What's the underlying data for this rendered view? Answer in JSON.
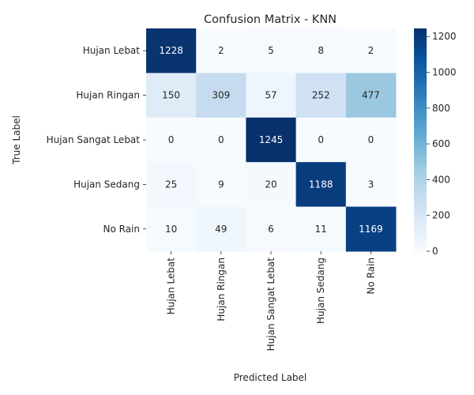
{
  "chart_data": {
    "type": "heatmap",
    "title": "Confusion Matrix - KNN",
    "xlabel": "Predicted Label",
    "ylabel": "True Label",
    "row_labels": [
      "Hujan Lebat",
      "Hujan Ringan",
      "Hujan Sangat Lebat",
      "Hujan Sedang",
      "No Rain"
    ],
    "col_labels": [
      "Hujan Lebat",
      "Hujan Ringan",
      "Hujan Sangat Lebat",
      "Hujan Sedang",
      "No Rain"
    ],
    "values": [
      [
        1228,
        2,
        5,
        8,
        2
      ],
      [
        150,
        309,
        57,
        252,
        477
      ],
      [
        0,
        0,
        1245,
        0,
        0
      ],
      [
        25,
        9,
        20,
        1188,
        3
      ],
      [
        10,
        49,
        6,
        11,
        1169
      ]
    ],
    "colormap": "Blues",
    "color_range": [
      0,
      1245
    ],
    "colorbar_ticks": [
      0,
      200,
      400,
      600,
      800,
      1000,
      1200
    ],
    "grid": false,
    "legend": "colorbar-right"
  }
}
